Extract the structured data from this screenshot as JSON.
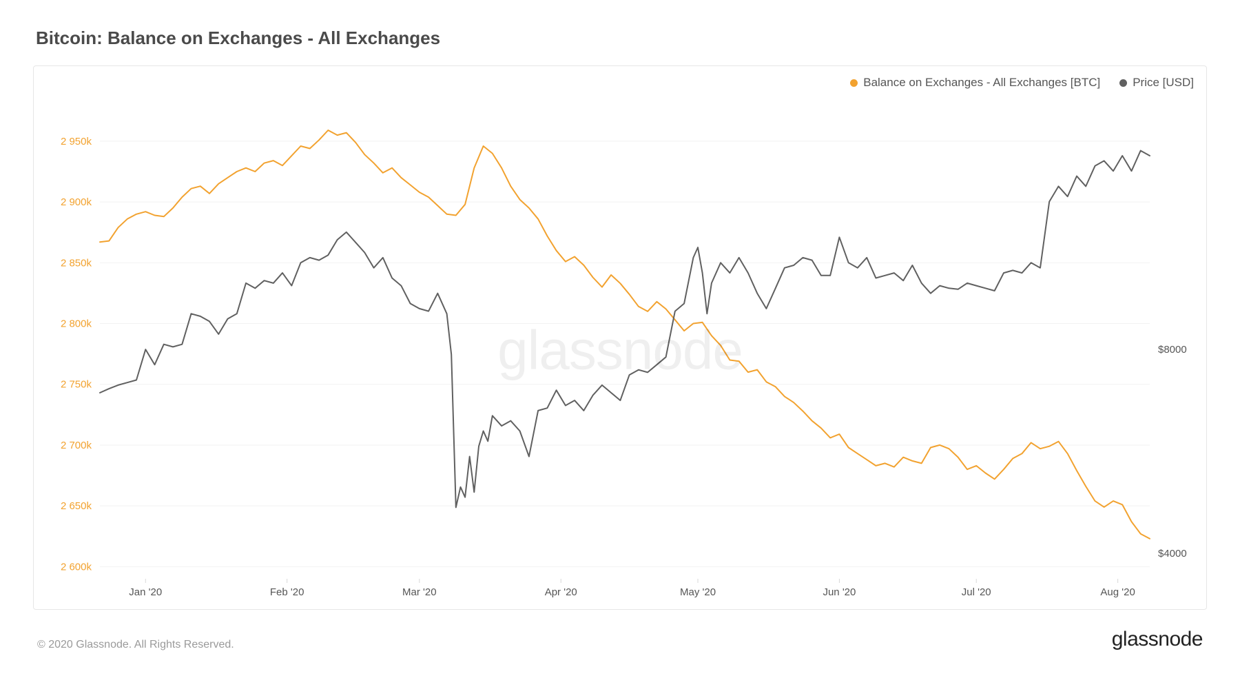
{
  "title": "Bitcoin: Balance on Exchanges - All Exchanges",
  "copyright": "© 2020 Glassnode. All Rights Reserved.",
  "brand": "glassnode",
  "watermark": "glassnode",
  "chart": {
    "type": "line-dual-axis",
    "background_color": "#ffffff",
    "grid_color": "#f2f2f2",
    "border_color": "#e6e6e6",
    "x": {
      "domain_min": 0,
      "domain_max": 230,
      "ticks": [
        {
          "pos": 10,
          "label": "Jan '20"
        },
        {
          "pos": 41,
          "label": "Feb '20"
        },
        {
          "pos": 70,
          "label": "Mar '20"
        },
        {
          "pos": 101,
          "label": "Apr '20"
        },
        {
          "pos": 131,
          "label": "May '20"
        },
        {
          "pos": 162,
          "label": "Jun '20"
        },
        {
          "pos": 192,
          "label": "Jul '20"
        },
        {
          "pos": 223,
          "label": "Aug '20"
        }
      ]
    },
    "y_left": {
      "label_color": "#f2a22f",
      "domain_min": 2590,
      "domain_max": 2980,
      "ticks": [
        {
          "v": 2600,
          "label": "2 600k"
        },
        {
          "v": 2650,
          "label": "2 650k"
        },
        {
          "v": 2700,
          "label": "2 700k"
        },
        {
          "v": 2750,
          "label": "2 750k"
        },
        {
          "v": 2800,
          "label": "2 800k"
        },
        {
          "v": 2850,
          "label": "2 850k"
        },
        {
          "v": 2900,
          "label": "2 900k"
        },
        {
          "v": 2950,
          "label": "2 950k"
        }
      ]
    },
    "y_right": {
      "label_color": "#555555",
      "domain_min": 3500,
      "domain_max": 12800,
      "ticks": [
        {
          "v": 4000,
          "label": "$4000"
        },
        {
          "v": 8000,
          "label": "$8000"
        }
      ]
    },
    "legend": [
      {
        "label": "Balance on Exchanges - All Exchanges [BTC]",
        "color": "#f2a22f"
      },
      {
        "label": "Price [USD]",
        "color": "#606060"
      }
    ],
    "series": [
      {
        "name": "balance",
        "axis": "left",
        "color": "#f2a22f",
        "line_width": 2.0,
        "points": [
          [
            0,
            2867
          ],
          [
            2,
            2868
          ],
          [
            4,
            2879
          ],
          [
            6,
            2886
          ],
          [
            8,
            2890
          ],
          [
            10,
            2892
          ],
          [
            12,
            2889
          ],
          [
            14,
            2888
          ],
          [
            16,
            2895
          ],
          [
            18,
            2904
          ],
          [
            20,
            2911
          ],
          [
            22,
            2913
          ],
          [
            24,
            2907
          ],
          [
            26,
            2915
          ],
          [
            28,
            2920
          ],
          [
            30,
            2925
          ],
          [
            32,
            2928
          ],
          [
            34,
            2925
          ],
          [
            36,
            2932
          ],
          [
            38,
            2934
          ],
          [
            40,
            2930
          ],
          [
            42,
            2938
          ],
          [
            44,
            2946
          ],
          [
            46,
            2944
          ],
          [
            48,
            2951
          ],
          [
            50,
            2959
          ],
          [
            52,
            2955
          ],
          [
            54,
            2957
          ],
          [
            56,
            2949
          ],
          [
            58,
            2939
          ],
          [
            60,
            2932
          ],
          [
            62,
            2924
          ],
          [
            64,
            2928
          ],
          [
            66,
            2920
          ],
          [
            68,
            2914
          ],
          [
            70,
            2908
          ],
          [
            72,
            2904
          ],
          [
            74,
            2897
          ],
          [
            76,
            2890
          ],
          [
            78,
            2889
          ],
          [
            80,
            2898
          ],
          [
            82,
            2928
          ],
          [
            84,
            2946
          ],
          [
            86,
            2940
          ],
          [
            88,
            2928
          ],
          [
            90,
            2913
          ],
          [
            92,
            2902
          ],
          [
            94,
            2895
          ],
          [
            96,
            2886
          ],
          [
            98,
            2872
          ],
          [
            100,
            2860
          ],
          [
            102,
            2851
          ],
          [
            104,
            2855
          ],
          [
            106,
            2848
          ],
          [
            108,
            2838
          ],
          [
            110,
            2830
          ],
          [
            112,
            2840
          ],
          [
            114,
            2833
          ],
          [
            116,
            2824
          ],
          [
            118,
            2814
          ],
          [
            120,
            2810
          ],
          [
            122,
            2818
          ],
          [
            124,
            2812
          ],
          [
            126,
            2803
          ],
          [
            128,
            2794
          ],
          [
            130,
            2800
          ],
          [
            132,
            2801
          ],
          [
            134,
            2790
          ],
          [
            136,
            2782
          ],
          [
            138,
            2770
          ],
          [
            140,
            2769
          ],
          [
            142,
            2760
          ],
          [
            144,
            2762
          ],
          [
            146,
            2752
          ],
          [
            148,
            2748
          ],
          [
            150,
            2740
          ],
          [
            152,
            2735
          ],
          [
            154,
            2728
          ],
          [
            156,
            2720
          ],
          [
            158,
            2714
          ],
          [
            160,
            2706
          ],
          [
            162,
            2709
          ],
          [
            164,
            2698
          ],
          [
            166,
            2693
          ],
          [
            168,
            2688
          ],
          [
            170,
            2683
          ],
          [
            172,
            2685
          ],
          [
            174,
            2682
          ],
          [
            176,
            2690
          ],
          [
            178,
            2687
          ],
          [
            180,
            2685
          ],
          [
            182,
            2698
          ],
          [
            184,
            2700
          ],
          [
            186,
            2697
          ],
          [
            188,
            2690
          ],
          [
            190,
            2680
          ],
          [
            192,
            2683
          ],
          [
            194,
            2677
          ],
          [
            196,
            2672
          ],
          [
            198,
            2680
          ],
          [
            200,
            2689
          ],
          [
            202,
            2693
          ],
          [
            204,
            2702
          ],
          [
            206,
            2697
          ],
          [
            208,
            2699
          ],
          [
            210,
            2703
          ],
          [
            212,
            2693
          ],
          [
            214,
            2679
          ],
          [
            216,
            2666
          ],
          [
            218,
            2654
          ],
          [
            220,
            2649
          ],
          [
            222,
            2654
          ],
          [
            224,
            2651
          ],
          [
            226,
            2637
          ],
          [
            228,
            2627
          ],
          [
            230,
            2623
          ]
        ]
      },
      {
        "name": "price",
        "axis": "right",
        "color": "#606060",
        "line_width": 1.6,
        "points": [
          [
            0,
            7150
          ],
          [
            2,
            7230
          ],
          [
            4,
            7300
          ],
          [
            6,
            7350
          ],
          [
            8,
            7400
          ],
          [
            10,
            8000
          ],
          [
            12,
            7700
          ],
          [
            14,
            8100
          ],
          [
            16,
            8050
          ],
          [
            18,
            8100
          ],
          [
            20,
            8700
          ],
          [
            22,
            8650
          ],
          [
            24,
            8550
          ],
          [
            26,
            8300
          ],
          [
            28,
            8600
          ],
          [
            30,
            8700
          ],
          [
            32,
            9300
          ],
          [
            34,
            9200
          ],
          [
            36,
            9350
          ],
          [
            38,
            9300
          ],
          [
            40,
            9500
          ],
          [
            42,
            9250
          ],
          [
            44,
            9700
          ],
          [
            46,
            9800
          ],
          [
            48,
            9750
          ],
          [
            50,
            9850
          ],
          [
            52,
            10150
          ],
          [
            54,
            10300
          ],
          [
            56,
            10100
          ],
          [
            58,
            9900
          ],
          [
            60,
            9600
          ],
          [
            62,
            9800
          ],
          [
            64,
            9400
          ],
          [
            66,
            9250
          ],
          [
            68,
            8900
          ],
          [
            70,
            8800
          ],
          [
            72,
            8750
          ],
          [
            74,
            9100
          ],
          [
            76,
            8700
          ],
          [
            77,
            7900
          ],
          [
            78,
            4900
          ],
          [
            79,
            5300
          ],
          [
            80,
            5100
          ],
          [
            81,
            5900
          ],
          [
            82,
            5200
          ],
          [
            83,
            6100
          ],
          [
            84,
            6400
          ],
          [
            85,
            6200
          ],
          [
            86,
            6700
          ],
          [
            88,
            6500
          ],
          [
            90,
            6600
          ],
          [
            92,
            6400
          ],
          [
            94,
            5900
          ],
          [
            96,
            6800
          ],
          [
            98,
            6850
          ],
          [
            100,
            7200
          ],
          [
            102,
            6900
          ],
          [
            104,
            7000
          ],
          [
            106,
            6800
          ],
          [
            108,
            7100
          ],
          [
            110,
            7300
          ],
          [
            112,
            7150
          ],
          [
            114,
            7000
          ],
          [
            116,
            7500
          ],
          [
            118,
            7600
          ],
          [
            120,
            7550
          ],
          [
            122,
            7700
          ],
          [
            124,
            7850
          ],
          [
            126,
            8750
          ],
          [
            128,
            8900
          ],
          [
            130,
            9800
          ],
          [
            131,
            10000
          ],
          [
            132,
            9500
          ],
          [
            133,
            8700
          ],
          [
            134,
            9300
          ],
          [
            136,
            9700
          ],
          [
            138,
            9500
          ],
          [
            140,
            9800
          ],
          [
            142,
            9500
          ],
          [
            144,
            9100
          ],
          [
            146,
            8800
          ],
          [
            148,
            9200
          ],
          [
            150,
            9600
          ],
          [
            152,
            9650
          ],
          [
            154,
            9800
          ],
          [
            156,
            9750
          ],
          [
            158,
            9450
          ],
          [
            160,
            9450
          ],
          [
            162,
            10200
          ],
          [
            164,
            9700
          ],
          [
            166,
            9600
          ],
          [
            168,
            9800
          ],
          [
            170,
            9400
          ],
          [
            172,
            9450
          ],
          [
            174,
            9500
          ],
          [
            176,
            9350
          ],
          [
            178,
            9650
          ],
          [
            180,
            9300
          ],
          [
            182,
            9100
          ],
          [
            184,
            9250
          ],
          [
            186,
            9200
          ],
          [
            188,
            9180
          ],
          [
            190,
            9300
          ],
          [
            192,
            9250
          ],
          [
            194,
            9200
          ],
          [
            196,
            9150
          ],
          [
            198,
            9500
          ],
          [
            200,
            9550
          ],
          [
            202,
            9500
          ],
          [
            204,
            9700
          ],
          [
            206,
            9600
          ],
          [
            208,
            10900
          ],
          [
            210,
            11200
          ],
          [
            212,
            11000
          ],
          [
            214,
            11400
          ],
          [
            216,
            11200
          ],
          [
            218,
            11600
          ],
          [
            220,
            11700
          ],
          [
            222,
            11500
          ],
          [
            224,
            11800
          ],
          [
            226,
            11500
          ],
          [
            228,
            11900
          ],
          [
            230,
            11800
          ]
        ]
      }
    ]
  }
}
